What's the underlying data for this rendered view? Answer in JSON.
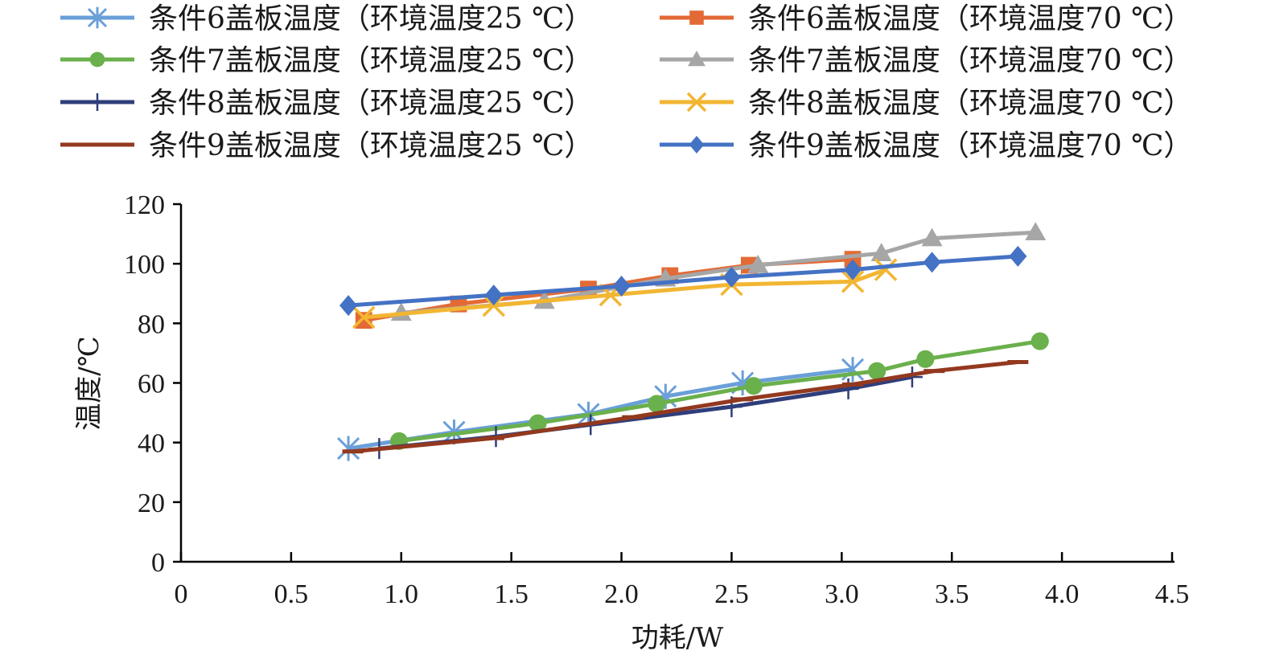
{
  "chart_data": {
    "type": "line",
    "xlabel": "功耗/W",
    "ylabel": "温度/℃",
    "xlim": [
      0,
      4.5
    ],
    "ylim": [
      0,
      120
    ],
    "xticks": [
      "0",
      "0.5",
      "1.0",
      "1.5",
      "2.0",
      "2.5",
      "3.0",
      "3.5",
      "4.0",
      "4.5"
    ],
    "yticks": [
      "0",
      "20",
      "40",
      "60",
      "80",
      "100",
      "120"
    ],
    "grid": false,
    "legend_position": "top",
    "series": [
      {
        "name": "条件6盖板温度（环境温度25 ℃）",
        "color": "#6a9fd8",
        "marker": "asterisk",
        "x": [
          0.76,
          1.24,
          1.85,
          2.2,
          2.55,
          3.05
        ],
        "y": [
          38,
          43.5,
          49.5,
          55.5,
          60,
          64.5
        ]
      },
      {
        "name": "条件7盖板温度（环境温度25 ℃）",
        "color": "#6ab04c",
        "marker": "circle",
        "x": [
          0.99,
          1.62,
          2.16,
          2.6,
          3.16,
          3.38,
          3.9
        ],
        "y": [
          40.5,
          46.5,
          53,
          59,
          64,
          68,
          74
        ]
      },
      {
        "name": "条件8盖板温度（环境温度25 ℃）",
        "color": "#2f3e7a",
        "marker": "plus",
        "x": [
          0.9,
          1.43,
          1.86,
          2.5,
          3.03,
          3.32
        ],
        "y": [
          38,
          42,
          46,
          52,
          58,
          62
        ]
      },
      {
        "name": "条件9盖板温度（环境温度25 ℃）",
        "color": "#93391f",
        "marker": "dash",
        "x": [
          0.78,
          1.42,
          2.05,
          2.55,
          3.05,
          3.42,
          3.8
        ],
        "y": [
          37,
          41.5,
          48.5,
          54.5,
          59.5,
          64,
          67
        ]
      },
      {
        "name": "条件6盖板温度（环境温度70 ℃）",
        "color": "#e36a35",
        "marker": "square",
        "x": [
          0.83,
          1.26,
          1.85,
          2.22,
          2.58,
          3.05
        ],
        "y": [
          81,
          86.5,
          91.5,
          96,
          99.5,
          101.5
        ]
      },
      {
        "name": "条件7盖板温度（环境温度70 ℃）",
        "color": "#a6a6a6",
        "marker": "triangle",
        "x": [
          1.0,
          1.65,
          2.2,
          2.62,
          3.18,
          3.41,
          3.88
        ],
        "y": [
          83.5,
          87.5,
          95,
          99.5,
          103.5,
          108.5,
          110.5
        ]
      },
      {
        "name": "条件8盖板温度（环境温度70 ℃）",
        "color": "#f2b632",
        "marker": "x",
        "x": [
          0.83,
          1.42,
          1.95,
          2.5,
          3.05,
          3.2
        ],
        "y": [
          82,
          86,
          89.5,
          93,
          94,
          98
        ]
      },
      {
        "name": "条件9盖板温度（环境温度70 ℃）",
        "color": "#4472c4",
        "marker": "diamond",
        "x": [
          0.76,
          1.42,
          2.0,
          2.5,
          3.05,
          3.41,
          3.8
        ],
        "y": [
          86,
          89.5,
          92.5,
          95.5,
          98,
          100.5,
          102.5
        ]
      }
    ]
  }
}
